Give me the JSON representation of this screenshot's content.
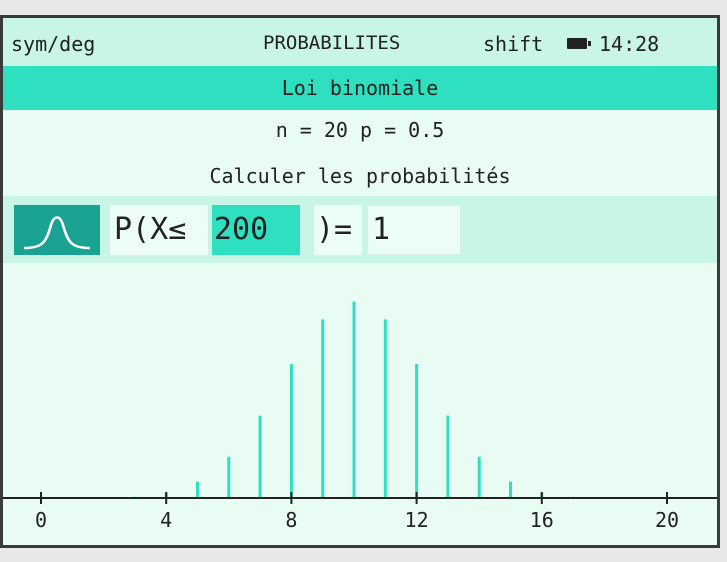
{
  "status_bar": {
    "mode": "sym/deg",
    "app_title": "PROBABILITES",
    "shift": "shift",
    "battery_icon": "battery-icon",
    "time": "14:28"
  },
  "title": "Loi binomiale",
  "parameters": "n = 20 p = 0.5",
  "action_label": "Calculer les probabilités",
  "calculation": {
    "distribution_icon": "bell-curve-icon",
    "prefix": "P(X≤",
    "k_value": "200",
    "suffix": ")=",
    "result": "1"
  },
  "colors": {
    "accent": "#2ee0c0",
    "accent_dark": "#1aa393",
    "background": "#e8fcf4",
    "panel": "#c8f5e6"
  },
  "chart_data": {
    "type": "bar",
    "x": [
      0,
      1,
      2,
      3,
      4,
      5,
      6,
      7,
      8,
      9,
      10,
      11,
      12,
      13,
      14,
      15,
      16,
      17,
      18,
      19,
      20
    ],
    "values": [
      9.5e-07,
      1.91e-05,
      0.000181,
      0.00109,
      0.00462,
      0.0148,
      0.037,
      0.0739,
      0.1201,
      0.1602,
      0.1762,
      0.1602,
      0.1201,
      0.0739,
      0.037,
      0.0148,
      0.00462,
      0.00109,
      0.000181,
      1.91e-05,
      9.5e-07
    ],
    "xlim": [
      0,
      20
    ],
    "ylim": [
      0,
      0.2
    ],
    "x_ticks": [
      0,
      4,
      8,
      12,
      16,
      20
    ],
    "x_tick_labels": [
      "0",
      "4",
      "8",
      "12",
      "16",
      "20"
    ],
    "grid": false
  }
}
